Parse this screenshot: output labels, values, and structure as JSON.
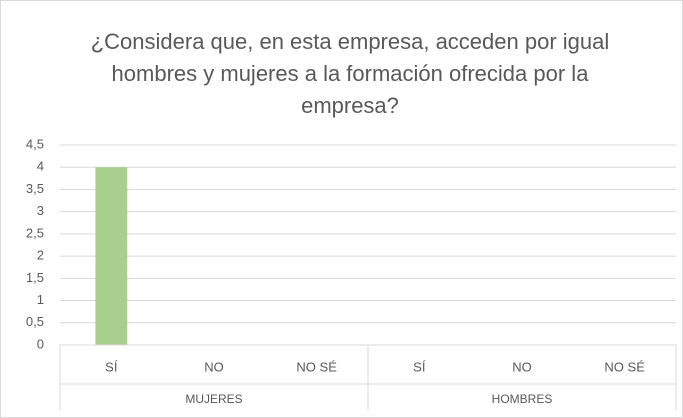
{
  "chart_data": {
    "type": "bar",
    "title": "¿Considera que, en esta empresa, acceden por igual hombres y mujeres a la formación ofrecida por la empresa?",
    "groups": [
      {
        "name": "MUJERES",
        "categories": [
          "SÍ",
          "NO",
          "NO SÉ"
        ],
        "values": [
          4,
          0,
          0
        ]
      },
      {
        "name": "HOMBRES",
        "categories": [
          "SÍ",
          "NO",
          "NO SÉ"
        ],
        "values": [
          0,
          0,
          0
        ]
      }
    ],
    "color": "#a9cf8f",
    "ylim": [
      0,
      4.5
    ],
    "yticks": [
      0,
      {
        "value": 0.5,
        "label": "0,5"
      },
      1,
      {
        "value": 1.5,
        "label": "1,5"
      },
      2,
      {
        "value": 2.5,
        "label": "2,5"
      },
      3,
      {
        "value": 3.5,
        "label": "3,5"
      },
      4,
      {
        "value": 4.5,
        "label": "4,5"
      }
    ],
    "grid": true
  }
}
